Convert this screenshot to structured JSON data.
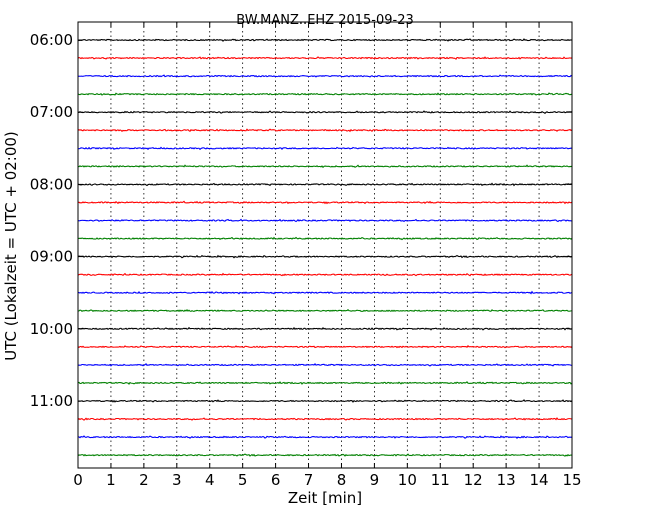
{
  "chart_data": {
    "type": "line",
    "title": "BW.MANZ..EHZ 2015-09-23",
    "xlabel": "Zeit  [min]",
    "ylabel": "UTC (Lokalzeit = UTC + 02:00)",
    "xlim": [
      0,
      15
    ],
    "x_ticks": [
      "0",
      "1",
      "2",
      "3",
      "4",
      "5",
      "6",
      "7",
      "8",
      "9",
      "10",
      "11",
      "12",
      "13",
      "14",
      "15"
    ],
    "y_ticks": [
      "06:00",
      "07:00",
      "08:00",
      "09:00",
      "10:00",
      "11:00"
    ],
    "grid": "vertical dotted",
    "trace_start_times": [
      "06:00",
      "06:15",
      "06:30",
      "06:45",
      "07:00",
      "07:15",
      "07:30",
      "07:45",
      "08:00",
      "08:15",
      "08:30",
      "08:45",
      "09:00",
      "09:15",
      "09:30",
      "09:45",
      "10:00",
      "10:15",
      "10:30",
      "10:45",
      "11:00",
      "11:15",
      "11:30",
      "11:45"
    ],
    "trace_duration_min": 15,
    "colors": [
      "#000000",
      "#ff0000",
      "#0000ff",
      "#008000"
    ]
  }
}
